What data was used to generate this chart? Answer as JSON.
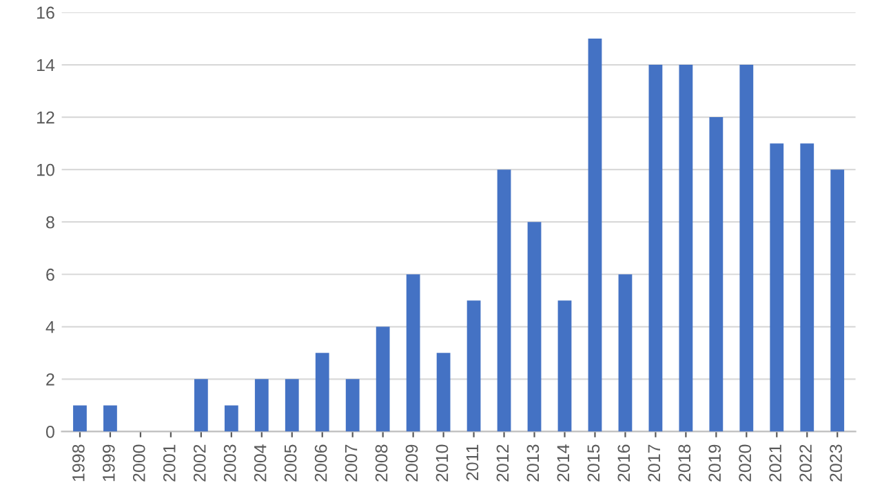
{
  "chart_data": {
    "type": "bar",
    "categories": [
      "1998",
      "1999",
      "2000",
      "2001",
      "2002",
      "2003",
      "2004",
      "2005",
      "2006",
      "2007",
      "2008",
      "2009",
      "2010",
      "2011",
      "2012",
      "2013",
      "2014",
      "2015",
      "2016",
      "2017",
      "2018",
      "2019",
      "2020",
      "2021",
      "2022",
      "2023"
    ],
    "values": [
      1,
      1,
      0,
      0,
      2,
      1,
      2,
      2,
      3,
      2,
      4,
      6,
      3,
      5,
      10,
      8,
      5,
      15,
      6,
      14,
      14,
      12,
      14,
      11,
      11,
      10
    ],
    "color": "#4472c4",
    "ylim": [
      0,
      16
    ],
    "yticks": [
      0,
      2,
      4,
      6,
      8,
      10,
      12,
      14,
      16
    ],
    "grid": "y"
  }
}
